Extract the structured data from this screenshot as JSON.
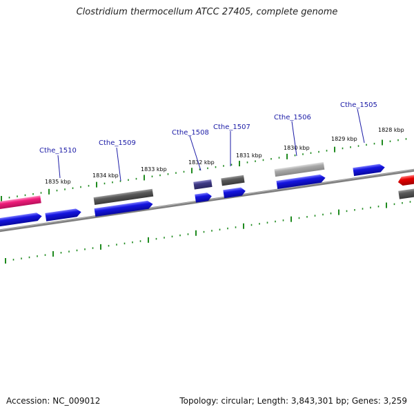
{
  "title": "Clostridium thermocellum ATCC 27405, complete genome",
  "footer": {
    "accession": "Accession: NC_009012",
    "summary": "Topology: circular; Length: 3,843,301 bp; Genes: 3,259"
  },
  "colors": {
    "background": "#ffffff",
    "backbone": "#7f7f7f",
    "tick": "#1e8a1e",
    "label": "#1a1aa6",
    "forward_gene": "#1515e0",
    "other_gene": "#5a5a5a",
    "light_gene": "#a8a8a8",
    "purple_gene": "#3f3a86",
    "pink_gene": "#ee1d7a",
    "red_gene": "#e60000"
  },
  "kbp_labels": [
    "1835 kbp",
    "1834 kbp",
    "1833 kbp",
    "1832 kbp",
    "1831 kbp",
    "1830 kbp",
    "1829 kbp",
    "1828 kbp"
  ],
  "gene_labels": [
    "Cthe_1510",
    "Cthe_1509",
    "Cthe_1508",
    "Cthe_1507",
    "Cthe_1506",
    "Cthe_1505"
  ]
}
